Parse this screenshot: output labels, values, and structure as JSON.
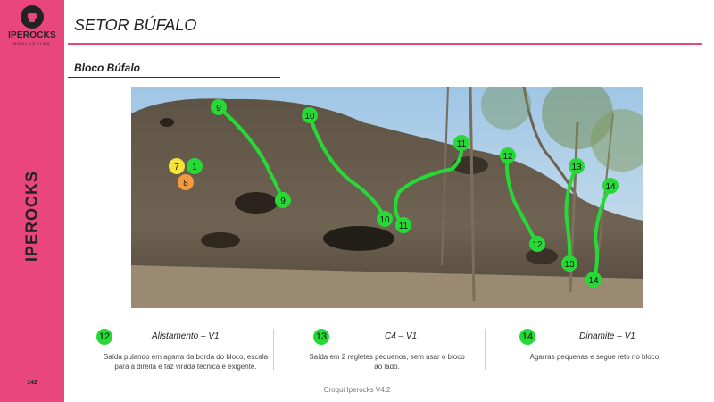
{
  "brand": {
    "name": "IPEROCKS",
    "sub": "BOULDERING"
  },
  "sidebar": {
    "title": "IPEROCKS",
    "page_number": "142"
  },
  "header": {
    "sector_title": "SETOR BÚFALO",
    "block_title": "Bloco Búfalo"
  },
  "photo": {
    "markers": [
      {
        "label": "9",
        "color": "#27d937"
      },
      {
        "label": "9",
        "color": "#27d937"
      },
      {
        "label": "10",
        "color": "#27d937"
      },
      {
        "label": "10",
        "color": "#27d937"
      },
      {
        "label": "11",
        "color": "#27d937"
      },
      {
        "label": "11",
        "color": "#27d937"
      },
      {
        "label": "12",
        "color": "#27d937"
      },
      {
        "label": "12",
        "color": "#27d937"
      },
      {
        "label": "13",
        "color": "#27d937"
      },
      {
        "label": "13",
        "color": "#27d937"
      },
      {
        "label": "14",
        "color": "#27d937"
      },
      {
        "label": "14",
        "color": "#27d937"
      },
      {
        "label": "7",
        "color": "#f4e43a"
      },
      {
        "label": "1",
        "color": "#27d937"
      },
      {
        "label": "8",
        "color": "#f29a3e"
      }
    ],
    "route_color": "#27d937"
  },
  "routes": [
    {
      "number": "12",
      "name": "Alistamento – V1",
      "description": "Saída pulando em agarra da borda do bloco, escala para a direita e faz virada técnica e exigente."
    },
    {
      "number": "13",
      "name": "C4 – V1",
      "description": "Saída em 2 regletes pequenos, sem usar o bloco ao lado."
    },
    {
      "number": "14",
      "name": "Dinamite – V1",
      "description": "Agarras pequenas e segue reto no bloco."
    }
  ],
  "footer": {
    "text": "Croqui Iperocks V4.2"
  },
  "colors": {
    "accent": "#e8467c",
    "route_green": "#27d937"
  }
}
